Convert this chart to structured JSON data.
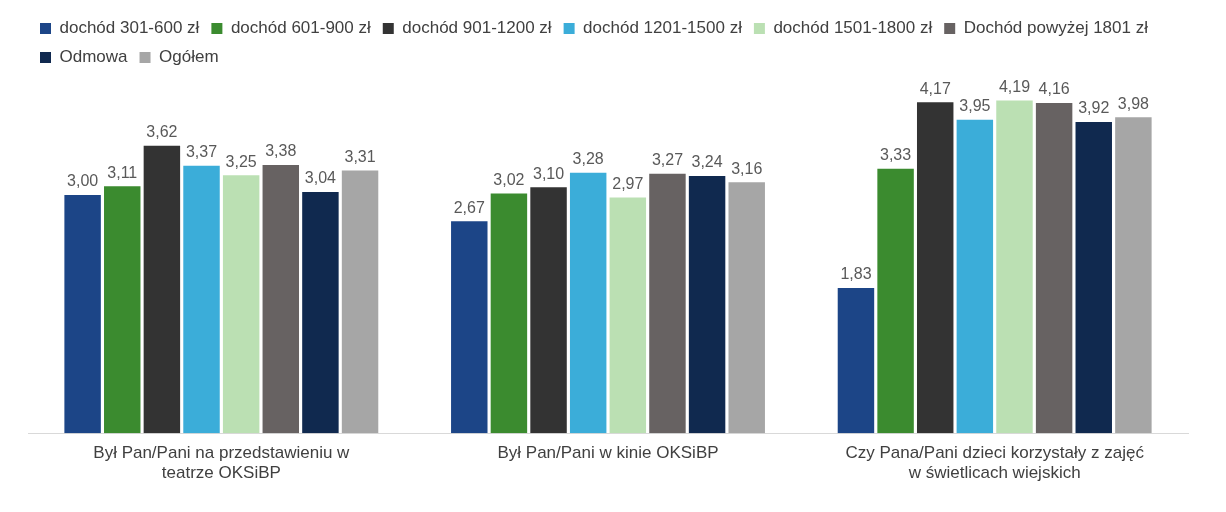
{
  "chart_data": {
    "type": "bar",
    "categories": [
      "Był Pan/Pani na przedstawieniu w teatrze OKSiBP",
      "Był Pan/Pani w kinie OKSiBP",
      "Czy Pana/Pani dzieci korzystały z zajęć w świetlicach wiejskich"
    ],
    "series": [
      {
        "name": "dochód 301-600 zł",
        "color": "#1c4587",
        "values": [
          3.0,
          2.67,
          1.83
        ],
        "value_labels": [
          "3,00",
          "2,67",
          "1,83"
        ]
      },
      {
        "name": "dochód 601-900 zł",
        "color": "#3b8b2f",
        "values": [
          3.11,
          3.02,
          3.33
        ],
        "value_labels": [
          "3,11",
          "3,02",
          "3,33"
        ]
      },
      {
        "name": "dochód 901-1200 zł",
        "color": "#333333",
        "values": [
          3.62,
          3.1,
          4.17
        ],
        "value_labels": [
          "3,62",
          "3,10",
          "4,17"
        ]
      },
      {
        "name": "dochód 1201-1500 zł",
        "color": "#3badd9",
        "values": [
          3.37,
          3.28,
          3.95
        ],
        "value_labels": [
          "3,37",
          "3,28",
          "3,95"
        ]
      },
      {
        "name": "dochód 1501-1800 zł",
        "color": "#bbe0b3",
        "values": [
          3.25,
          2.97,
          4.19
        ],
        "value_labels": [
          "3,25",
          "2,97",
          "4,19"
        ]
      },
      {
        "name": "Dochód powyżej 1801 zł",
        "color": "#676262",
        "values": [
          3.38,
          3.27,
          4.16
        ],
        "value_labels": [
          "3,38",
          "3,27",
          "4,16"
        ]
      },
      {
        "name": "Odmowa",
        "color": "#10294f",
        "values": [
          3.04,
          3.24,
          3.92
        ],
        "value_labels": [
          "3,04",
          "3,24",
          "3,92"
        ]
      },
      {
        "name": "Ogółem",
        "color": "#a6a6a6",
        "values": [
          3.31,
          3.16,
          3.98
        ],
        "value_labels": [
          "3,31",
          "3,16",
          "3,98"
        ]
      }
    ],
    "legend": "top"
  }
}
